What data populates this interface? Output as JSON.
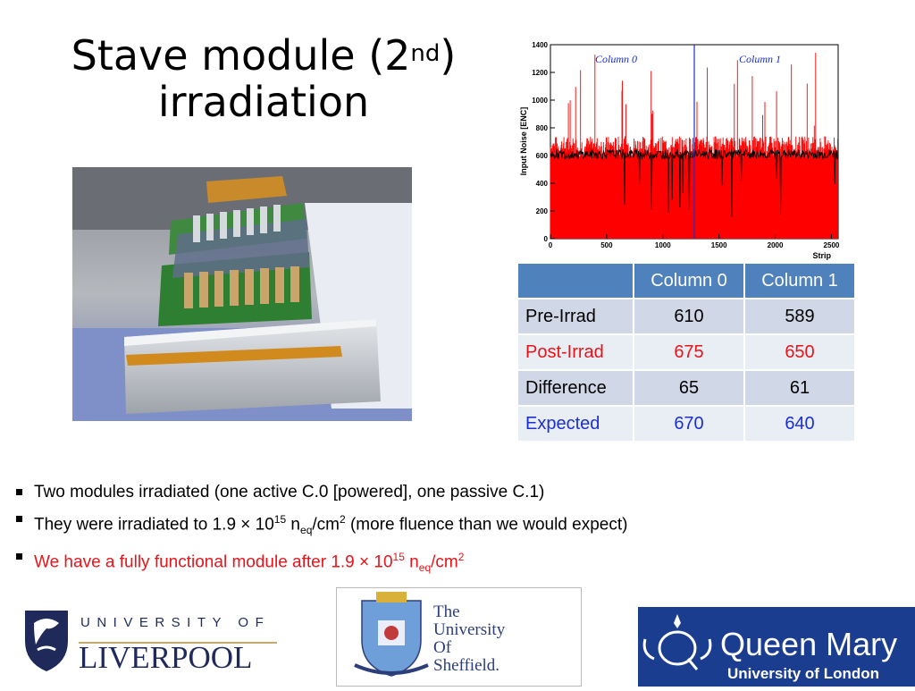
{
  "title": {
    "line1_pre": "Stave module (2",
    "line1_sup": "nd",
    "line1_post": ")",
    "line2": "irradiation"
  },
  "chart_data": {
    "type": "line",
    "xlabel": "Strip",
    "ylabel": "Input Noise [ENC]",
    "xlim": [
      0,
      2560
    ],
    "ylim": [
      0,
      1400
    ],
    "xticks": [
      0,
      500,
      1000,
      1500,
      2000,
      2500
    ],
    "yticks": [
      0,
      200,
      400,
      600,
      800,
      1000,
      1200,
      1400
    ],
    "annotations": [
      "Column 0",
      "Column 1"
    ],
    "divider_x": 1280,
    "series": [
      {
        "color": "#ff0000",
        "mean": 660
      },
      {
        "color": "#000000",
        "mean": 610
      }
    ]
  },
  "table": {
    "headers": [
      "",
      "Column 0",
      "Column 1"
    ],
    "rows": [
      {
        "label": "Pre-Irrad",
        "c0": "610",
        "c1": "589"
      },
      {
        "label": "Post-Irrad",
        "c0": "675",
        "c1": "650"
      },
      {
        "label": "Difference",
        "c0": "65",
        "c1": "61"
      },
      {
        "label": "Expected",
        "c0": "670",
        "c1": "640"
      }
    ]
  },
  "bullets": {
    "b1": "Two modules irradiated (one active C.0 [powered], one passive C.1)",
    "b2_pre": "They were irradiated to 1.9 × 10",
    "b2_exp": "15",
    "b2_n": " n",
    "b2_sub": "eq",
    "b2_unit": "/cm",
    "b2_sup2": "2",
    "b2_post": " (more fluence than we would expect)",
    "b3_pre": "We have a fully functional module after 1.9 × 10",
    "b3_exp": "15",
    "b3_n": " n",
    "b3_sub": "eq",
    "b3_unit": "/cm",
    "b3_sup2": "2"
  },
  "logos": {
    "liverpool_top": "UNIVERSITY OF",
    "liverpool_main": "LIVERPOOL",
    "sheffield": [
      "The",
      "University",
      "Of",
      "Sheffield."
    ],
    "qm_main": "Queen Mary",
    "qm_sub": "University of London"
  }
}
